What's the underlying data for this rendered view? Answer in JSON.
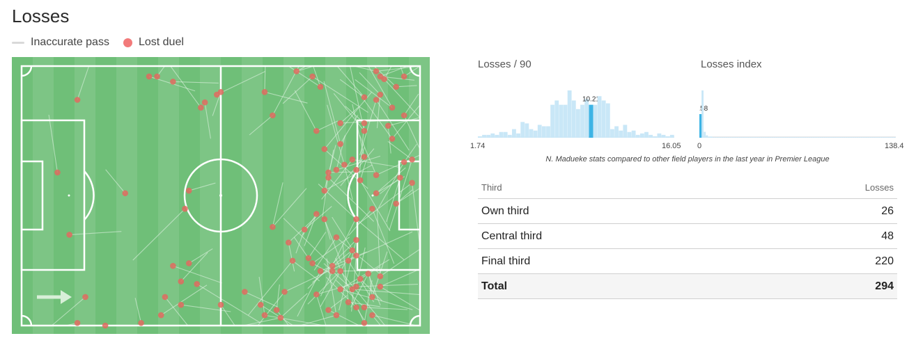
{
  "title": "Losses",
  "legend": {
    "inaccurate_pass": "Inaccurate pass",
    "lost_duel": "Lost duel"
  },
  "colors": {
    "pitch_dark": "#6fbf78",
    "pitch_light": "#7dc585",
    "duel_dot": "#e06a5f",
    "pass_line": "#e8f5ea",
    "hist_bar": "#c9e7f7",
    "hist_highlight": "#3db4e5"
  },
  "histograms": {
    "losses_per_90": {
      "title": "Losses / 90",
      "min_label": "1.74",
      "max_label": "16.05",
      "value_label": "10.21"
    },
    "losses_index": {
      "title": "Losses index",
      "min_label": "0",
      "max_label": "138.4",
      "value_label": "1.58"
    },
    "caption": "N. Madueke stats compared to other field players in the last year in Premier League"
  },
  "table": {
    "col_third": "Third",
    "col_losses": "Losses",
    "rows": [
      {
        "third": "Own third",
        "losses": "26"
      },
      {
        "third": "Central third",
        "losses": "48"
      },
      {
        "third": "Final third",
        "losses": "220"
      }
    ],
    "total": {
      "third": "Total",
      "losses": "294"
    }
  },
  "chart_data": [
    {
      "type": "bar",
      "title": "Losses / 90",
      "xlim": [
        1.74,
        16.05
      ],
      "player_value": 10.21,
      "values": [
        1,
        2,
        2,
        3,
        2,
        4,
        4,
        2,
        6,
        3,
        11,
        10,
        6,
        5,
        9,
        8,
        8,
        23,
        26,
        23,
        23,
        33,
        26,
        20,
        23,
        27,
        23,
        23,
        29,
        26,
        24,
        6,
        8,
        5,
        9,
        4,
        5,
        2,
        3,
        4,
        2,
        1,
        3,
        2,
        1,
        2
      ],
      "highlight_index": 26
    },
    {
      "type": "bar",
      "title": "Losses index",
      "xlim": [
        0,
        138.4
      ],
      "player_value": 1.58,
      "values": [
        33,
        80,
        10,
        4,
        2,
        2,
        1,
        1,
        1,
        1,
        1,
        1,
        1,
        1,
        1,
        1,
        1,
        1,
        1,
        1,
        1,
        1,
        1,
        1,
        1,
        1,
        1,
        1,
        1,
        1,
        1,
        1,
        1,
        1,
        1,
        1,
        1,
        1,
        1,
        1,
        1,
        1,
        1,
        1,
        1,
        1,
        1,
        1,
        1,
        1,
        1,
        1,
        1,
        1,
        1,
        1,
        1,
        1,
        1,
        1,
        1,
        1,
        1,
        1,
        1,
        1,
        1,
        1,
        1,
        1,
        1,
        1,
        1,
        1,
        1,
        1,
        1,
        1,
        1,
        1,
        1,
        1,
        1,
        1,
        1,
        1,
        1,
        1,
        1,
        1
      ],
      "highlight_index": 0
    },
    {
      "type": "scatter",
      "title": "Losses",
      "xlim": [
        0,
        100
      ],
      "ylim": [
        0,
        100
      ],
      "series": [
        {
          "name": "Lost duel",
          "points": [
            [
              32,
              4
            ],
            [
              34,
              4
            ],
            [
              38,
              6
            ],
            [
              50,
              10
            ],
            [
              49,
              11
            ],
            [
              46,
              14
            ],
            [
              45,
              16
            ],
            [
              14,
              13
            ],
            [
              9,
              41
            ],
            [
              12,
              65
            ],
            [
              26,
              49
            ],
            [
              41,
              55
            ],
            [
              42,
              48
            ],
            [
              61,
              10
            ],
            [
              63,
              19
            ],
            [
              63,
              62
            ],
            [
              67,
              68
            ],
            [
              74,
              57
            ],
            [
              76,
              48
            ],
            [
              77,
              43
            ],
            [
              74,
              25
            ],
            [
              76,
              32
            ],
            [
              77,
              41
            ],
            [
              79,
              40
            ],
            [
              81,
              38
            ],
            [
              84,
              67
            ],
            [
              84,
              59
            ],
            [
              89,
              49
            ],
            [
              88,
              55
            ],
            [
              94,
              53
            ],
            [
              95,
              43
            ],
            [
              92,
              23
            ],
            [
              96,
              4
            ],
            [
              89,
              13
            ],
            [
              90,
              11
            ],
            [
              86,
              22
            ],
            [
              86,
              25
            ],
            [
              80,
              22
            ],
            [
              80,
              30
            ],
            [
              86,
              12
            ],
            [
              89,
              42
            ],
            [
              76,
              59
            ],
            [
              79,
              66
            ],
            [
              71,
              63
            ],
            [
              72,
              74
            ],
            [
              73,
              76
            ],
            [
              75,
              79
            ],
            [
              78,
              79
            ],
            [
              80,
              79
            ],
            [
              82,
              75
            ],
            [
              83,
              71
            ],
            [
              84,
              73
            ],
            [
              80,
              86
            ],
            [
              74,
              88
            ],
            [
              77,
              94
            ],
            [
              79,
              96
            ],
            [
              82,
              91
            ],
            [
              83,
              86
            ],
            [
              85,
              82
            ],
            [
              87,
              80
            ],
            [
              90,
              81
            ],
            [
              90,
              85
            ],
            [
              88,
              89
            ],
            [
              86,
              93
            ],
            [
              88,
              96
            ],
            [
              86,
              99
            ],
            [
              84,
              93
            ],
            [
              78,
              77
            ],
            [
              84,
              85
            ],
            [
              68,
              75
            ],
            [
              66,
              87
            ],
            [
              64,
              94
            ],
            [
              65,
              97
            ],
            [
              61,
              96
            ],
            [
              60,
              92
            ],
            [
              56,
              87
            ],
            [
              50,
              92
            ],
            [
              44,
              84
            ],
            [
              40,
              83
            ],
            [
              38,
              77
            ],
            [
              42,
              76
            ],
            [
              36,
              89
            ],
            [
              40,
              92
            ],
            [
              35,
              96
            ],
            [
              30,
              99
            ],
            [
              21,
              100
            ],
            [
              16,
              89
            ],
            [
              14,
              99
            ],
            [
              89,
              2
            ],
            [
              69,
              2
            ],
            [
              73,
              4
            ],
            [
              75,
              8
            ],
            [
              90,
              4
            ],
            [
              91,
              5
            ],
            [
              94,
              8
            ],
            [
              93,
              16
            ],
            [
              96,
              19
            ],
            [
              98,
              36
            ],
            [
              98,
              45
            ],
            [
              96,
              37
            ],
            [
              93,
              28
            ],
            [
              86,
              35
            ],
            [
              85,
              44
            ],
            [
              84,
              40
            ],
            [
              83,
              36
            ]
          ]
        }
      ]
    }
  ]
}
